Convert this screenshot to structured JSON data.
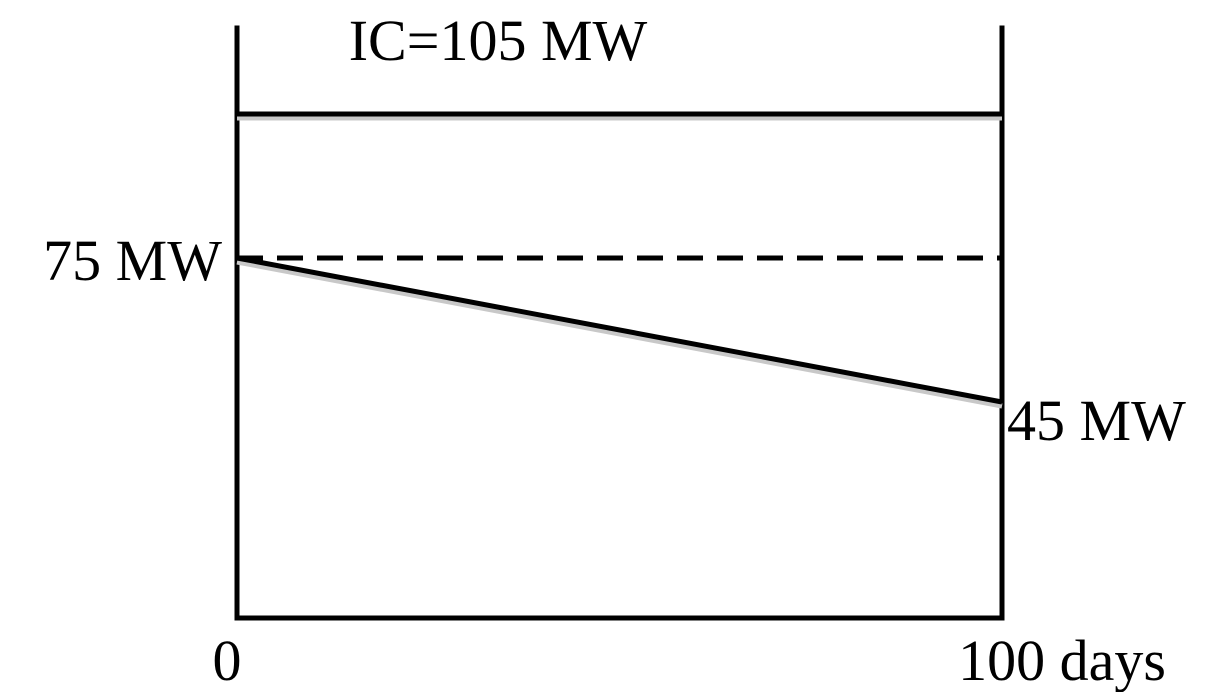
{
  "chart_data": {
    "type": "line",
    "x_unit": "days",
    "y_unit": "MW",
    "xlim": [
      0,
      100
    ],
    "installed_capacity": 105,
    "series": [
      {
        "x": [
          0,
          100
        ],
        "y": [
          75,
          45
        ],
        "style": "solid"
      },
      {
        "x": [
          0,
          100
        ],
        "y": [
          75,
          75
        ],
        "style": "dashed"
      }
    ],
    "annotations": {
      "capacity_label": "IC=105 MW",
      "start_label": "75 MW",
      "end_label": "45 MW",
      "x_start_label": "0",
      "x_end_label": "100 days"
    },
    "colors": {
      "line": "#000000",
      "shadow": "#c8c8c8"
    },
    "grid": false
  }
}
